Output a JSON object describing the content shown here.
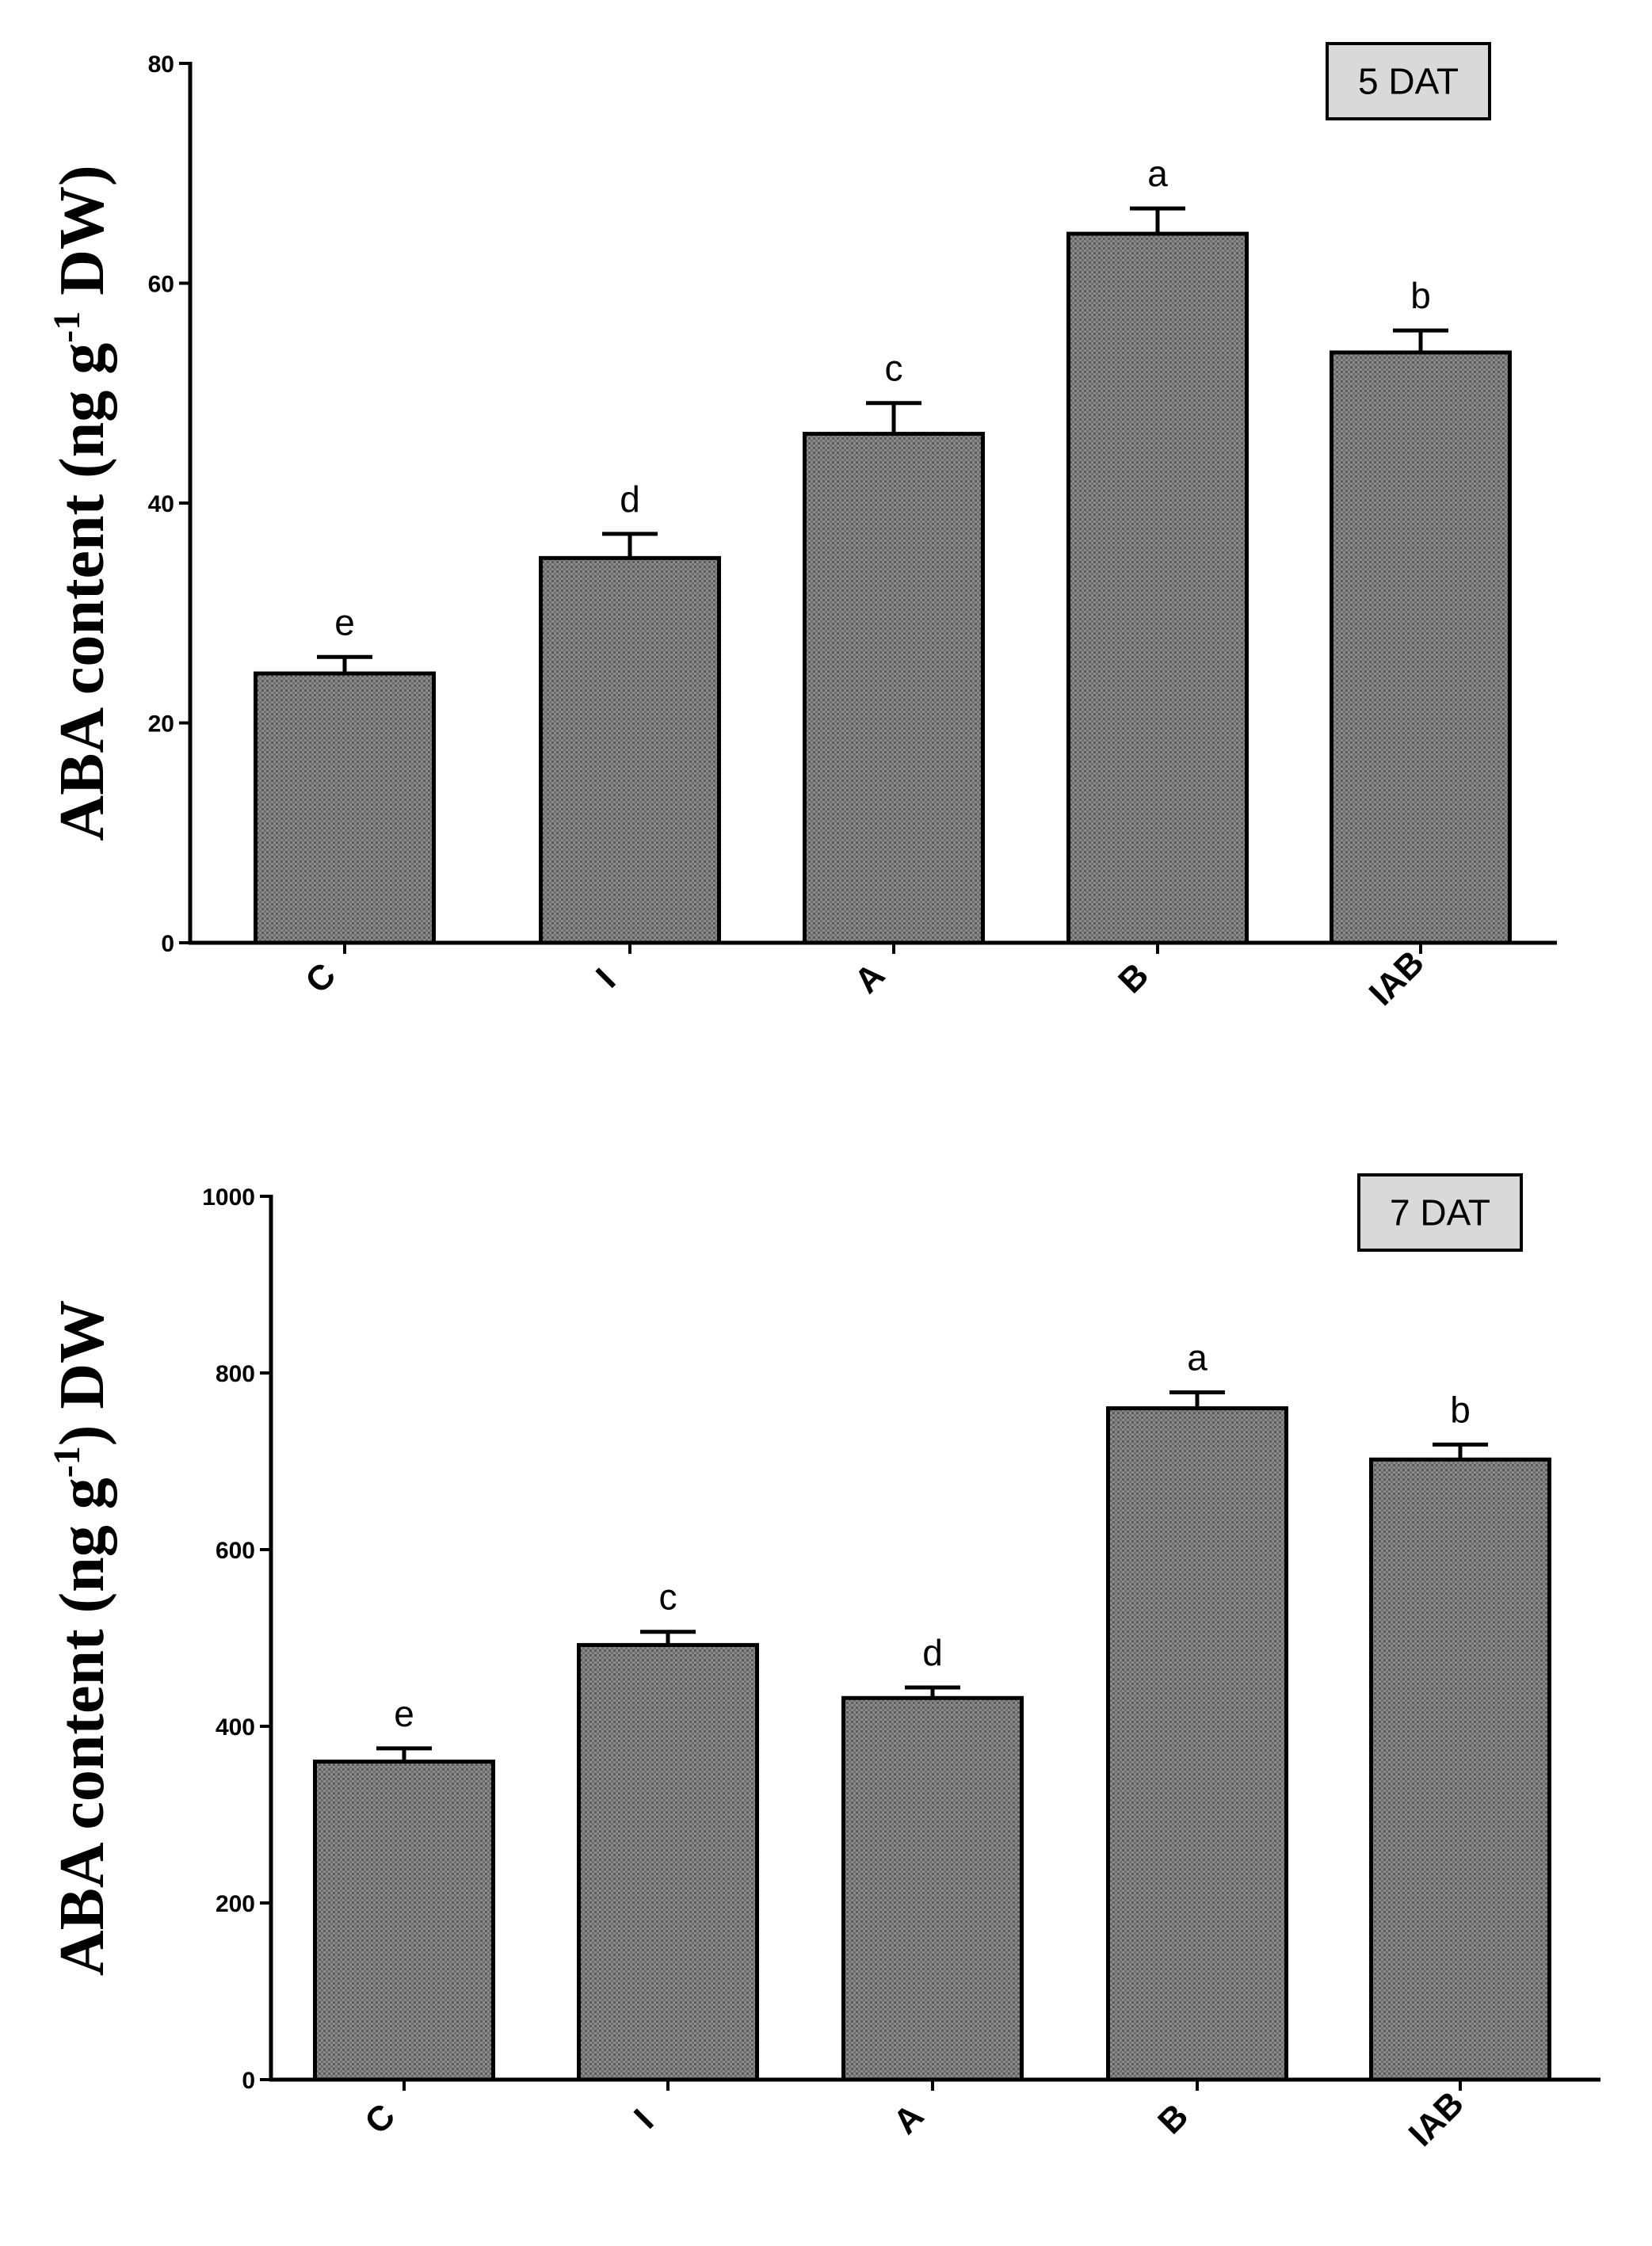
{
  "chart_data": [
    {
      "type": "bar",
      "panel_badge": "5 DAT",
      "ylabel": {
        "main": "ABA content (ng g",
        "sup": "-1",
        "tail": " DW)"
      },
      "categories": [
        "C",
        "I",
        "A",
        "B",
        "IAB"
      ],
      "values": [
        24.5,
        35,
        46.3,
        64.5,
        53.7
      ],
      "errors": [
        1.5,
        2.2,
        2.8,
        2.3,
        2.0
      ],
      "significance": [
        "e",
        "d",
        "c",
        "a",
        "b"
      ],
      "ylim": [
        0,
        80
      ],
      "yticks": [
        0,
        20,
        40,
        60,
        80
      ],
      "ytick_labels": [
        "0",
        "20",
        "40",
        "60",
        "80"
      ]
    },
    {
      "type": "bar",
      "panel_badge": "7 DAT",
      "ylabel": {
        "main": "ABA content (ng g",
        "sup": "-1",
        "tail": ") DW"
      },
      "categories": [
        "C",
        "I",
        "A",
        "B",
        "IAB"
      ],
      "values": [
        360,
        492,
        432,
        760,
        702
      ],
      "errors": [
        15,
        15,
        12,
        18,
        17
      ],
      "significance": [
        "e",
        "c",
        "d",
        "a",
        "b"
      ],
      "ylim": [
        0,
        1000
      ],
      "yticks": [
        0,
        200,
        400,
        600,
        800,
        1000
      ],
      "ytick_labels": [
        "0",
        "200",
        "400",
        "600",
        "800",
        "1000"
      ]
    }
  ],
  "colors": {
    "bar_fill": "#8c8c8c",
    "bar_dot": "#5a5a5a",
    "badge_fill": "#d9d9d9",
    "ink": "#000000"
  }
}
